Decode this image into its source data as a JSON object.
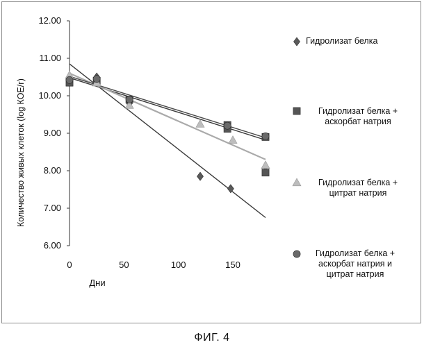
{
  "chart_data": {
    "type": "scatter",
    "title": "",
    "xlabel": "Дни",
    "ylabel": "Количество живых клеток (log КОЕ/г)",
    "xlim": [
      0,
      180
    ],
    "ylim": [
      6.0,
      12.0
    ],
    "x_ticks": [
      0,
      50,
      100,
      150
    ],
    "y_ticks": [
      "6.00",
      "7.00",
      "8.00",
      "9.00",
      "10.00",
      "11.00",
      "12.00"
    ],
    "grid": false,
    "legend_position": "right",
    "trendlines": true,
    "series": [
      {
        "name": "Гидролизат белка",
        "marker": "diamond",
        "color": "#5a5a5a",
        "points": [
          [
            0,
            10.45
          ],
          [
            25,
            10.5
          ],
          [
            55,
            9.8
          ],
          [
            120,
            7.85
          ],
          [
            148,
            7.52
          ],
          [
            180,
            7.98
          ]
        ],
        "trend": [
          [
            0,
            10.85
          ],
          [
            180,
            6.75
          ]
        ]
      },
      {
        "name": "Гидролизат белка +\nаскорбат натрия",
        "marker": "square",
        "color": "#555555",
        "points": [
          [
            0,
            10.35
          ],
          [
            25,
            10.4
          ],
          [
            55,
            9.9
          ],
          [
            145,
            9.22
          ],
          [
            145,
            9.12
          ],
          [
            180,
            8.9
          ],
          [
            180,
            7.95
          ]
        ],
        "trend": [
          [
            0,
            10.48
          ],
          [
            180,
            8.82
          ]
        ]
      },
      {
        "name": "Гидролизат белка +\nцитрат натрия",
        "marker": "triangle",
        "color": "#bdbdbd",
        "points": [
          [
            0,
            10.55
          ],
          [
            25,
            10.35
          ],
          [
            55,
            9.75
          ],
          [
            120,
            9.25
          ],
          [
            150,
            8.82
          ],
          [
            180,
            8.15
          ]
        ],
        "trend": [
          [
            0,
            10.6
          ],
          [
            180,
            8.3
          ]
        ]
      },
      {
        "name": "Гидролизат белка +\nаскорбат натрия и\nцитрат натрия",
        "marker": "circle",
        "color": "#6a6a6a",
        "points": [
          [
            0,
            10.42
          ],
          [
            25,
            10.45
          ],
          [
            55,
            9.9
          ],
          [
            145,
            9.2
          ],
          [
            180,
            8.92
          ]
        ],
        "trend": [
          [
            0,
            10.52
          ],
          [
            180,
            8.88
          ]
        ]
      }
    ]
  },
  "figure_caption": "ФИГ. 4"
}
